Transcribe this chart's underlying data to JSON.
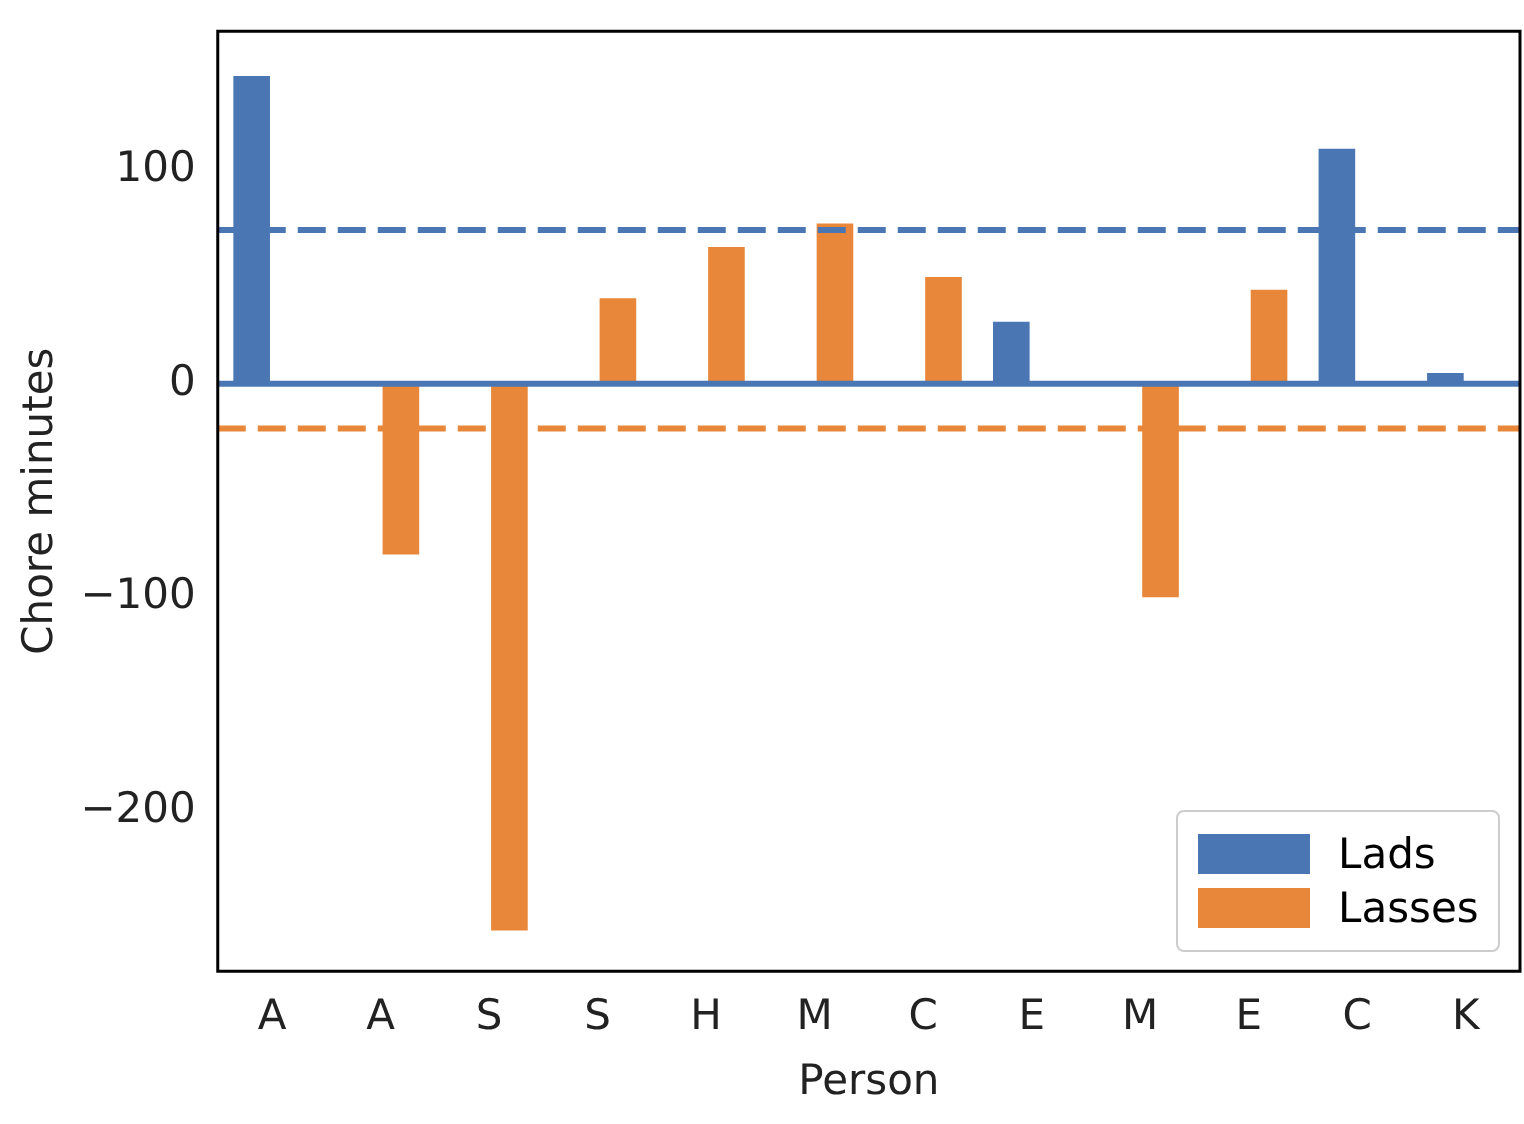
{
  "chart_data": {
    "type": "bar",
    "xlabel": "Person",
    "ylabel": "Chore minutes",
    "categories": [
      "A",
      "A",
      "S",
      "S",
      "H",
      "M",
      "C",
      "E",
      "M",
      "E",
      "C",
      "K"
    ],
    "series": [
      {
        "name": "Lads",
        "color": "#4a77b4",
        "values": [
          144,
          null,
          null,
          null,
          null,
          null,
          null,
          29,
          null,
          null,
          110,
          5
        ]
      },
      {
        "name": "Lasses",
        "color": "#e8873a",
        "values": [
          null,
          -80,
          -256,
          40,
          64,
          75,
          50,
          null,
          -100,
          44,
          null,
          null
        ]
      }
    ],
    "ylim": [
      -275,
      165
    ],
    "yticks": [
      -200,
      -100,
      0,
      100
    ],
    "grid": false,
    "legend": "bottom right",
    "ref_lines": [
      {
        "axis": "y",
        "value": 72,
        "color": "#4a77b4",
        "line_style": "dashed"
      },
      {
        "axis": "y",
        "value": -21,
        "color": "#e8873a",
        "line_style": "dashed"
      },
      {
        "axis": "y",
        "value": 0,
        "color": "#4a77b4",
        "line_style": "solid"
      }
    ]
  }
}
